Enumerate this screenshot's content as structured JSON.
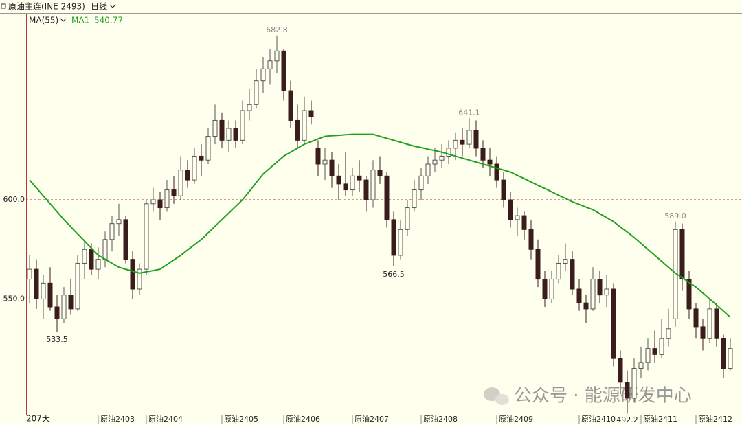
{
  "chart_data": {
    "type": "candlestick",
    "title": "原油主连(INE 2493)",
    "period": "日线",
    "indicator": "MA(55)",
    "span": "207天",
    "watermark": "公众号 · 能源研发中心",
    "xlim": [
      -0.5,
      103.7
    ],
    "ylim": [
      492,
      694.5
    ],
    "yticks": [
      {
        "value": 550,
        "label": "550.0"
      },
      {
        "value": 600,
        "label": "600.0"
      }
    ],
    "xticks": [
      {
        "value": 10,
        "label": "原油2403"
      },
      {
        "value": 17,
        "label": "原油2404"
      },
      {
        "value": 28,
        "label": "原油2405"
      },
      {
        "value": 37,
        "label": "原油2406"
      },
      {
        "value": 47,
        "label": "原油2407"
      },
      {
        "value": 57,
        "label": "原油2408"
      },
      {
        "value": 68,
        "label": "原油2409"
      },
      {
        "value": 80,
        "label": "原油2410"
      },
      {
        "value": 89,
        "label": "原油2411"
      },
      {
        "value": 97,
        "label": "原油2412"
      }
    ],
    "grid": true,
    "up_color": "#555555",
    "down_color": "#3a1c1c",
    "grid_color": "#a33",
    "candles": [
      [
        560,
        572,
        548,
        565
      ],
      [
        565,
        570,
        545,
        550
      ],
      [
        550,
        562,
        540,
        558
      ],
      [
        558,
        566,
        544,
        546
      ],
      [
        546,
        552,
        533.5,
        540
      ],
      [
        540,
        556,
        538,
        552
      ],
      [
        552,
        560,
        542,
        545
      ],
      [
        545,
        572,
        544,
        568
      ],
      [
        568,
        580,
        560,
        575
      ],
      [
        575,
        578,
        562,
        565
      ],
      [
        565,
        576,
        560,
        570
      ],
      [
        570,
        584,
        566,
        580
      ],
      [
        580,
        592,
        574,
        588
      ],
      [
        588,
        598,
        582,
        590
      ],
      [
        590,
        592,
        568,
        570
      ],
      [
        570,
        574,
        550,
        555
      ],
      [
        555,
        568,
        552,
        565
      ],
      [
        565,
        600,
        562,
        598
      ],
      [
        598,
        606,
        594,
        600
      ],
      [
        600,
        604,
        590,
        596
      ],
      [
        596,
        610,
        594,
        605
      ],
      [
        605,
        612,
        598,
        602
      ],
      [
        602,
        622,
        600,
        615
      ],
      [
        615,
        620,
        606,
        610
      ],
      [
        610,
        626,
        608,
        622
      ],
      [
        622,
        628,
        612,
        620
      ],
      [
        620,
        636,
        618,
        632
      ],
      [
        632,
        648,
        628,
        640
      ],
      [
        640,
        644,
        626,
        630
      ],
      [
        630,
        640,
        624,
        636
      ],
      [
        636,
        640,
        626,
        630
      ],
      [
        630,
        650,
        628,
        645
      ],
      [
        645,
        656,
        640,
        648
      ],
      [
        648,
        666,
        646,
        660
      ],
      [
        660,
        672,
        654,
        666
      ],
      [
        666,
        676,
        658,
        670
      ],
      [
        670,
        682.8,
        664,
        675
      ],
      [
        675,
        676,
        650,
        655
      ],
      [
        655,
        660,
        636,
        640
      ],
      [
        640,
        648,
        626,
        630
      ],
      [
        630,
        652,
        628,
        645
      ],
      [
        645,
        650,
        638,
        642
      ],
      [
        626,
        630,
        612,
        618
      ],
      [
        618,
        626,
        610,
        620
      ],
      [
        620,
        624,
        606,
        612
      ],
      [
        612,
        618,
        600,
        608
      ],
      [
        608,
        624,
        602,
        605
      ],
      [
        605,
        616,
        602,
        612
      ],
      [
        612,
        620,
        604,
        610
      ],
      [
        610,
        612,
        594,
        600
      ],
      [
        600,
        620,
        596,
        615
      ],
      [
        615,
        622,
        608,
        612
      ],
      [
        612,
        614,
        586,
        590
      ],
      [
        590,
        594,
        566.5,
        572
      ],
      [
        572,
        590,
        570,
        585
      ],
      [
        585,
        600,
        582,
        596
      ],
      [
        596,
        610,
        594,
        605
      ],
      [
        605,
        616,
        600,
        612
      ],
      [
        612,
        622,
        608,
        618
      ],
      [
        618,
        626,
        614,
        620
      ],
      [
        620,
        628,
        616,
        622
      ],
      [
        622,
        630,
        618,
        626
      ],
      [
        626,
        634,
        620,
        630
      ],
      [
        630,
        636,
        622,
        628
      ],
      [
        628,
        641.1,
        626,
        635
      ],
      [
        635,
        640,
        622,
        626
      ],
      [
        626,
        630,
        616,
        620
      ],
      [
        620,
        626,
        612,
        618
      ],
      [
        618,
        622,
        606,
        610
      ],
      [
        610,
        614,
        596,
        600
      ],
      [
        600,
        604,
        586,
        590
      ],
      [
        590,
        596,
        582,
        592
      ],
      [
        592,
        594,
        580,
        585
      ],
      [
        585,
        590,
        570,
        575
      ],
      [
        575,
        580,
        556,
        560
      ],
      [
        560,
        564,
        546,
        550
      ],
      [
        550,
        564,
        548,
        560
      ],
      [
        560,
        572,
        558,
        568
      ],
      [
        568,
        578,
        564,
        570
      ],
      [
        570,
        574,
        552,
        555
      ],
      [
        555,
        560,
        544,
        548
      ],
      [
        548,
        552,
        538,
        545
      ],
      [
        545,
        566,
        544,
        560
      ],
      [
        560,
        564,
        548,
        552
      ],
      [
        552,
        562,
        546,
        555
      ],
      [
        555,
        558,
        516,
        520
      ],
      [
        520,
        524,
        502,
        508
      ],
      [
        508,
        514,
        492.2,
        500
      ],
      [
        500,
        520,
        498,
        515
      ],
      [
        515,
        526,
        510,
        518
      ],
      [
        518,
        530,
        514,
        525
      ],
      [
        525,
        534,
        518,
        522
      ],
      [
        522,
        540,
        520,
        530
      ],
      [
        530,
        545,
        526,
        535
      ],
      [
        540,
        589,
        536,
        585
      ],
      [
        585,
        588,
        554,
        560
      ],
      [
        560,
        564,
        540,
        545
      ],
      [
        545,
        548,
        530,
        536
      ],
      [
        536,
        540,
        524,
        530
      ],
      [
        530,
        550,
        528,
        545
      ],
      [
        545,
        548,
        526,
        530
      ],
      [
        530,
        532,
        510,
        515
      ],
      [
        515,
        530,
        514,
        525
      ]
    ],
    "ma": {
      "name": "MA1",
      "color": "#1fa01f",
      "values": [
        610,
        606,
        602,
        598,
        594,
        590,
        586.4,
        582.8,
        579.2,
        575.6,
        572,
        570,
        568,
        566,
        565,
        564,
        563,
        563.7,
        564.3,
        565,
        567.3,
        569.7,
        572,
        574.7,
        577.3,
        580,
        583.3,
        586.7,
        590,
        593.3,
        596.7,
        600,
        604.3,
        608.7,
        613,
        616,
        619,
        622,
        624,
        626,
        628,
        629.3,
        630.7,
        632,
        632.3,
        632.5,
        632.8,
        633,
        633,
        633,
        633,
        632,
        631,
        630,
        629,
        628,
        627,
        626.3,
        625.5,
        624.8,
        624,
        623,
        622,
        621,
        620,
        619,
        618,
        617,
        616,
        615,
        614,
        612.3,
        610.7,
        609,
        607.3,
        605.7,
        604,
        602.3,
        600.7,
        599,
        597.7,
        596.3,
        595,
        593,
        591,
        589,
        586.3,
        583.7,
        581,
        578,
        575,
        572,
        569,
        566,
        563,
        560.7,
        558.3,
        556,
        553,
        550,
        547,
        543.9,
        540.77
      ]
    },
    "annotations": [
      {
        "x": 4,
        "value": 533.5,
        "placement": "below"
      },
      {
        "x": 36,
        "value": 682.8,
        "placement": "above"
      },
      {
        "x": 53,
        "value": 566.5,
        "placement": "below"
      },
      {
        "x": 64,
        "value": 641.1,
        "placement": "above"
      },
      {
        "x": 94,
        "value": {
          "value": 589,
          "label": "589.0"
        },
        "placement": "above"
      },
      {
        "x": 87,
        "value": 492.2,
        "placement": "below"
      }
    ]
  }
}
